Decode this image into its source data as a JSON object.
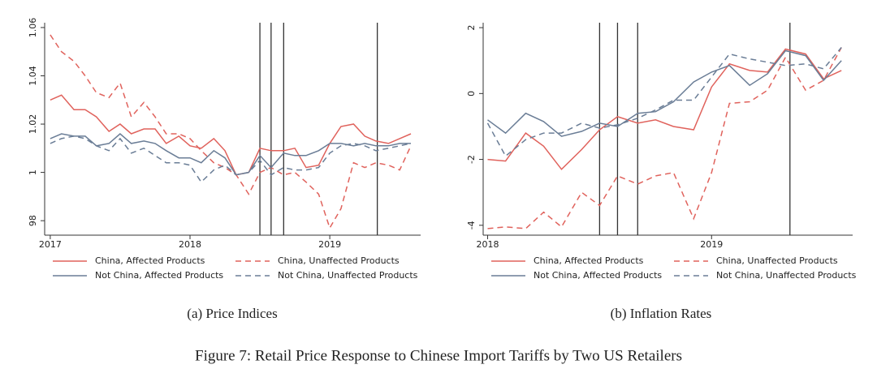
{
  "caption": "Figure 7: Retail Price Response to Chinese Import Tariffs by Two US Retailers",
  "chart_data": [
    {
      "type": "line",
      "title": "(a) Price Indices",
      "x": [
        2017,
        2017.08,
        2017.17,
        2017.25,
        2017.33,
        2017.42,
        2017.5,
        2017.58,
        2017.67,
        2017.75,
        2017.83,
        2017.92,
        2018,
        2018.08,
        2018.17,
        2018.25,
        2018.33,
        2018.42,
        2018.5,
        2018.58,
        2018.67,
        2018.75,
        2018.83,
        2018.92,
        2019,
        2019.08,
        2019.17,
        2019.25,
        2019.33,
        2019.42,
        2019.5,
        2019.58
      ],
      "xlim": [
        2016.96,
        2019.65
      ],
      "xticks": [
        2017,
        2018,
        2019
      ],
      "ylim": [
        0.974,
        1.062
      ],
      "yticks": [
        {
          "value": 0.98,
          "label": "98"
        },
        1,
        1.02,
        1.04,
        1.06
      ],
      "grid": false,
      "vlines": [
        2018.5,
        2018.58,
        2018.67,
        2019.34
      ],
      "legend": "bottom",
      "series": [
        {
          "name": "China, Affected Products",
          "color": "#e0625c",
          "dash": false,
          "values": [
            1.03,
            1.032,
            1.026,
            1.026,
            1.023,
            1.017,
            1.02,
            1.016,
            1.018,
            1.018,
            1.012,
            1.015,
            1.011,
            1.01,
            1.014,
            1.009,
            0.999,
            1.0,
            1.01,
            1.009,
            1.009,
            1.01,
            1.002,
            1.003,
            1.012,
            1.019,
            1.02,
            1.015,
            1.013,
            1.012,
            1.014,
            1.016
          ]
        },
        {
          "name": "China, Unaffected Products",
          "color": "#e0625c",
          "dash": true,
          "values": [
            1.057,
            1.05,
            1.046,
            1.04,
            1.033,
            1.031,
            1.037,
            1.023,
            1.029,
            1.023,
            1.016,
            1.016,
            1.014,
            1.009,
            1.004,
            1.002,
            0.999,
            0.991,
            1.0,
            1.002,
            0.999,
            1.0,
            0.996,
            0.991,
            0.977,
            0.985,
            1.004,
            1.002,
            1.004,
            1.003,
            1.001,
            1.011
          ]
        },
        {
          "name": "Not China, Affected Products",
          "color": "#6a7d96",
          "dash": false,
          "values": [
            1.014,
            1.016,
            1.015,
            1.015,
            1.011,
            1.012,
            1.016,
            1.012,
            1.013,
            1.012,
            1.009,
            1.006,
            1.006,
            1.004,
            1.009,
            1.006,
            0.999,
            1.0,
            1.007,
            1.002,
            1.008,
            1.007,
            1.007,
            1.009,
            1.012,
            1.012,
            1.011,
            1.012,
            1.011,
            1.011,
            1.012,
            1.012
          ]
        },
        {
          "name": "Not China, Unaffected Products",
          "color": "#6a7d96",
          "dash": true,
          "values": [
            1.012,
            1.014,
            1.015,
            1.014,
            1.011,
            1.009,
            1.014,
            1.008,
            1.01,
            1.007,
            1.004,
            1.004,
            1.003,
            0.996,
            1.001,
            1.003,
            0.999,
            1.0,
            1.005,
            0.999,
            1.002,
            1.001,
            1.001,
            1.002,
            1.008,
            1.011,
            1.012,
            1.011,
            1.009,
            1.01,
            1.011,
            1.012
          ]
        }
      ]
    },
    {
      "type": "line",
      "title": "(b) Inflation Rates",
      "x": [
        2018,
        2018.08,
        2018.17,
        2018.25,
        2018.33,
        2018.42,
        2018.5,
        2018.58,
        2018.67,
        2018.75,
        2018.83,
        2018.92,
        2019,
        2019.08,
        2019.17,
        2019.25,
        2019.33,
        2019.42,
        2019.5,
        2019.58
      ],
      "xlim": [
        2017.98,
        2019.63
      ],
      "xticks": [
        2018,
        2019
      ],
      "ylim": [
        -4.3,
        2.15
      ],
      "yticks": [
        -4,
        -2,
        0,
        2
      ],
      "grid": false,
      "vlines": [
        2018.5,
        2018.58,
        2018.67,
        2019.35
      ],
      "legend": "bottom",
      "series": [
        {
          "name": "China, Affected Products",
          "color": "#e0625c",
          "dash": false,
          "values": [
            -2.0,
            -2.05,
            -1.2,
            -1.6,
            -2.3,
            -1.7,
            -1.1,
            -0.7,
            -0.9,
            -0.8,
            -1.0,
            -1.1,
            0.2,
            0.9,
            0.7,
            0.65,
            1.35,
            1.2,
            0.45,
            0.7
          ]
        },
        {
          "name": "China, Unaffected Products",
          "color": "#e0625c",
          "dash": true,
          "values": [
            -4.1,
            -4.05,
            -4.1,
            -3.6,
            -4.05,
            -3.0,
            -3.4,
            -2.5,
            -2.75,
            -2.5,
            -2.4,
            -3.8,
            -2.4,
            -0.3,
            -0.25,
            0.1,
            1.1,
            0.1,
            0.4,
            1.4
          ]
        },
        {
          "name": "Not China, Affected Products",
          "color": "#6a7d96",
          "dash": false,
          "values": [
            -0.8,
            -1.2,
            -0.6,
            -0.85,
            -1.3,
            -1.15,
            -0.9,
            -1.0,
            -0.6,
            -0.55,
            -0.25,
            0.35,
            0.65,
            0.85,
            0.25,
            0.6,
            1.3,
            1.15,
            0.4,
            1.0
          ]
        },
        {
          "name": "Not China, Unaffected Products",
          "color": "#6a7d96",
          "dash": true,
          "values": [
            -0.9,
            -1.9,
            -1.4,
            -1.2,
            -1.2,
            -0.9,
            -1.05,
            -0.95,
            -0.75,
            -0.5,
            -0.2,
            -0.2,
            0.5,
            1.2,
            1.05,
            0.95,
            0.85,
            0.9,
            0.75,
            1.4
          ]
        }
      ]
    }
  ]
}
